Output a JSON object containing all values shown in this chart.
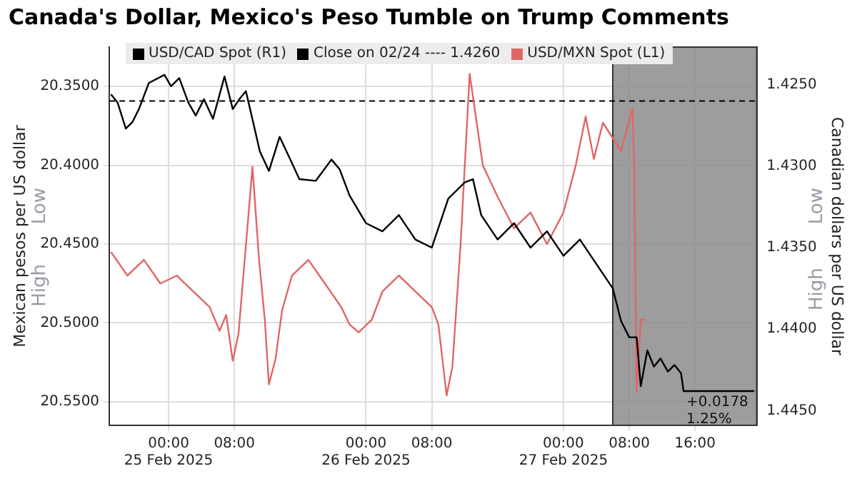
{
  "chart_data": {
    "type": "line",
    "title": "Canada's Dollar, Mexico's Peso Tumble on Trump Comments",
    "ylabel": "Mexican pesos per US dollar",
    "y2label": "Canadian dollars per US dollar",
    "xlim": [
      "2025-02-24T16:48",
      "2025-02-27T23:30"
    ],
    "xticks": [
      {
        "value": "2025-02-25T00:00",
        "label": "00:00\n25 Feb 2025"
      },
      {
        "value": "2025-02-25T08:00",
        "label": "08:00"
      },
      {
        "value": "2025-02-26T00:00",
        "label": "00:00\n26 Feb 2025"
      },
      {
        "value": "2025-02-26T08:00",
        "label": "08:00"
      },
      {
        "value": "2025-02-27T00:00",
        "label": "00:00\n27 Feb 2025"
      },
      {
        "value": "2025-02-27T08:00",
        "label": "08:00"
      },
      {
        "value": "2025-02-27T16:00",
        "label": "16:00"
      }
    ],
    "ylim": [
      20.565,
      20.325
    ],
    "yticks": [
      {
        "value": 20.35,
        "label": "20.3500"
      },
      {
        "value": 20.4,
        "label": "20.4000"
      },
      {
        "value": 20.45,
        "label": "20.4500"
      },
      {
        "value": 20.5,
        "label": "20.5000"
      },
      {
        "value": 20.55,
        "label": "20.5500"
      }
    ],
    "y2lim": [
      1.4459,
      1.4227
    ],
    "y2ticks": [
      {
        "value": 1.425,
        "label": "1.4250"
      },
      {
        "value": 1.43,
        "label": "1.4300"
      },
      {
        "value": 1.435,
        "label": "1.4350"
      },
      {
        "value": 1.44,
        "label": "1.4400"
      },
      {
        "value": 1.445,
        "label": "1.4450"
      }
    ],
    "series": [
      {
        "name": "USD/CAD Spot (R1)",
        "color": "#000000",
        "axis": "y2",
        "x": [
          "2025-02-24T17:00",
          "2025-02-24T17:48",
          "2025-02-24T18:48",
          "2025-02-24T19:36",
          "2025-02-24T20:24",
          "2025-02-24T21:36",
          "2025-02-24T23:30",
          "2025-02-25T00:18",
          "2025-02-25T01:18",
          "2025-02-25T02:24",
          "2025-02-25T03:18",
          "2025-02-25T04:18",
          "2025-02-25T05:24",
          "2025-02-25T06:48",
          "2025-02-25T07:48",
          "2025-02-25T08:36",
          "2025-02-25T09:24",
          "2025-02-25T10:00",
          "2025-02-25T11:06",
          "2025-02-25T12:12",
          "2025-02-25T13:30",
          "2025-02-25T14:54",
          "2025-02-25T15:54",
          "2025-02-25T17:54",
          "2025-02-25T19:48",
          "2025-02-25T20:48",
          "2025-02-25T22:00",
          "2025-02-26T00:00",
          "2025-02-26T02:00",
          "2025-02-26T04:00",
          "2025-02-26T06:00",
          "2025-02-26T08:00",
          "2025-02-26T10:00",
          "2025-02-26T12:00",
          "2025-02-26T13:00",
          "2025-02-26T14:00",
          "2025-02-26T16:00",
          "2025-02-26T18:00",
          "2025-02-26T20:00",
          "2025-02-26T22:00",
          "2025-02-27T00:00",
          "2025-02-27T02:00",
          "2025-02-27T04:00",
          "2025-02-27T06:00",
          "2025-02-27T07:00",
          "2025-02-27T08:00",
          "2025-02-27T08:54",
          "2025-02-27T09:24",
          "2025-02-27T10:12",
          "2025-02-27T11:00",
          "2025-02-27T11:48",
          "2025-02-27T12:42",
          "2025-02-27T13:30",
          "2025-02-27T14:18",
          "2025-02-27T14:36",
          "2025-02-27T23:12"
        ],
        "values": [
          1.4256,
          1.4261,
          1.4277,
          1.4273,
          1.4265,
          1.4249,
          1.4244,
          1.4251,
          1.4246,
          1.4261,
          1.4269,
          1.4259,
          1.4271,
          1.4245,
          1.4265,
          1.4259,
          1.4254,
          1.4267,
          1.4291,
          1.4303,
          1.4282,
          1.4297,
          1.4308,
          1.4309,
          1.4296,
          1.4302,
          1.4318,
          1.4335,
          1.434,
          1.433,
          1.4345,
          1.435,
          1.432,
          1.431,
          1.4308,
          1.433,
          1.4345,
          1.4335,
          1.435,
          1.434,
          1.4355,
          1.4345,
          1.436,
          1.4375,
          1.4395,
          1.4405,
          1.4405,
          1.4435,
          1.4413,
          1.4423,
          1.4418,
          1.4426,
          1.4422,
          1.4427,
          1.4438,
          1.4438
        ]
      },
      {
        "name": "USD/MXN Spot (L1)",
        "color": "#e06666",
        "x": [
          "2025-02-24T17:00",
          "2025-02-24T19:00",
          "2025-02-24T21:00",
          "2025-02-24T23:00",
          "2025-02-25T01:00",
          "2025-02-25T03:00",
          "2025-02-25T05:00",
          "2025-02-25T06:12",
          "2025-02-25T07:00",
          "2025-02-25T07:48",
          "2025-02-25T08:30",
          "2025-02-25T10:12",
          "2025-02-25T11:00",
          "2025-02-25T11:42",
          "2025-02-25T12:12",
          "2025-02-25T13:00",
          "2025-02-25T13:48",
          "2025-02-25T15:00",
          "2025-02-25T17:00",
          "2025-02-25T19:00",
          "2025-02-25T21:00",
          "2025-02-25T22:00",
          "2025-02-25T23:06",
          "2025-02-26T00:42",
          "2025-02-26T02:00",
          "2025-02-26T04:00",
          "2025-02-26T06:00",
          "2025-02-26T08:00",
          "2025-02-26T08:48",
          "2025-02-26T09:48",
          "2025-02-26T10:30",
          "2025-02-26T11:30",
          "2025-02-26T12:36",
          "2025-02-26T13:06",
          "2025-02-26T14:12",
          "2025-02-26T16:00",
          "2025-02-26T18:00",
          "2025-02-26T20:00",
          "2025-02-26T22:00",
          "2025-02-27T00:00",
          "2025-02-27T01:30",
          "2025-02-27T02:42",
          "2025-02-27T03:42",
          "2025-02-27T04:48",
          "2025-02-27T07:00",
          "2025-02-27T08:24",
          "2025-02-27T08:36",
          "2025-02-27T08:54",
          "2025-02-27T09:24",
          "2025-02-27T10:00"
        ],
        "values": [
          20.455,
          20.47,
          20.46,
          20.475,
          20.47,
          20.48,
          20.49,
          20.505,
          20.495,
          20.524,
          20.507,
          20.401,
          20.46,
          20.498,
          20.539,
          20.523,
          20.492,
          20.47,
          20.46,
          20.475,
          20.49,
          20.501,
          20.506,
          20.498,
          20.48,
          20.47,
          20.48,
          20.49,
          20.501,
          20.546,
          20.528,
          20.45,
          20.342,
          20.36,
          20.4,
          20.42,
          20.44,
          20.43,
          20.45,
          20.43,
          20.4,
          20.369,
          20.396,
          20.373,
          20.391,
          20.364,
          20.4,
          20.544,
          20.498,
          20.498
        ]
      }
    ],
    "ref_lines": [
      {
        "axis": "y2",
        "value": 1.426,
        "label": "Close on 02/24 ---- 1.4260",
        "color": "#000000",
        "line_style": "dashed"
      }
    ],
    "bands": [
      {
        "axis": "x",
        "from": "2025-02-27T06:00",
        "to": "2025-02-27T23:30",
        "color": "#8c8c8c"
      }
    ],
    "annotations": [
      "Low",
      "High",
      "Low",
      "High",
      "+0.0178",
      "1.25%"
    ],
    "grid": true,
    "legend": "top left",
    "marker": "none",
    "line_style": "solid"
  }
}
